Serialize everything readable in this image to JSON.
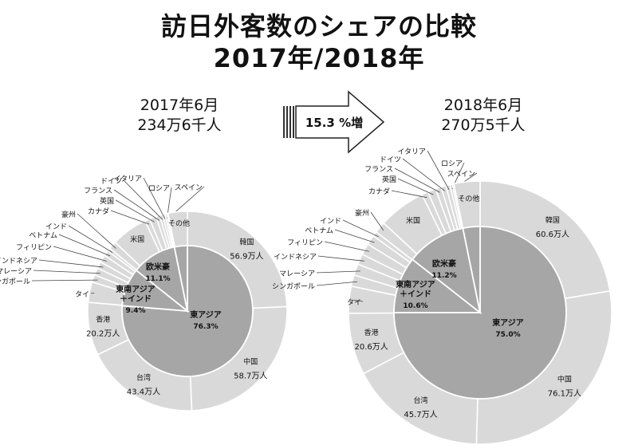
{
  "header": {
    "title_line1": "訪日外客数のシェアの比較",
    "title_line2": "2017年/2018年"
  },
  "left": {
    "month": "2017年6月",
    "total": "234万6千人"
  },
  "right": {
    "month": "2018年6月",
    "total": "270万5千人"
  },
  "arrow": {
    "label": "15.3 %増"
  },
  "chart_data": [
    {
      "type": "pie",
      "year": "2017年6月",
      "inner": [
        {
          "label": "東アジア",
          "share": "76.3%",
          "value": 76.3
        },
        {
          "label": "東南アジア\n＋インド",
          "share": "9.4%",
          "value": 9.4
        },
        {
          "label": "欧米豪",
          "share": "11.1%",
          "value": 11.1
        },
        {
          "label": "",
          "share": "",
          "value": 3.2
        }
      ],
      "outer": [
        {
          "label": "韓国",
          "amount": "56.9万人",
          "value": 24.3
        },
        {
          "label": "中国",
          "amount": "58.7万人",
          "value": 25.0
        },
        {
          "label": "台湾",
          "amount": "43.4万人",
          "value": 18.5
        },
        {
          "label": "香港",
          "amount": "20.2万人",
          "value": 8.6
        },
        {
          "label": "タイ",
          "amount": "",
          "value": 3.3
        },
        {
          "label": "シンガポール",
          "amount": "",
          "value": 1.2
        },
        {
          "label": "マレーシア",
          "amount": "",
          "value": 1.2
        },
        {
          "label": "インドネシア",
          "amount": "",
          "value": 1.1
        },
        {
          "label": "フィリピン",
          "amount": "",
          "value": 1.2
        },
        {
          "label": "ベトナム",
          "amount": "",
          "value": 0.9
        },
        {
          "label": "インド",
          "amount": "",
          "value": 0.5
        },
        {
          "label": "豪州",
          "amount": "",
          "value": 1.3
        },
        {
          "label": "米国",
          "amount": "",
          "value": 5.9
        },
        {
          "label": "カナダ",
          "amount": "",
          "value": 0.8
        },
        {
          "label": "英国",
          "amount": "",
          "value": 1.1
        },
        {
          "label": "フランス",
          "amount": "",
          "value": 0.6
        },
        {
          "label": "ドイツ",
          "amount": "",
          "value": 0.5
        },
        {
          "label": "イタリア",
          "amount": "",
          "value": 0.4
        },
        {
          "label": "ロシア",
          "amount": "",
          "value": 0.3
        },
        {
          "label": "スペイン",
          "amount": "",
          "value": 0.2
        },
        {
          "label": "その他",
          "amount": "",
          "value": 3.1
        }
      ]
    },
    {
      "type": "pie",
      "year": "2018年6月",
      "inner": [
        {
          "label": "東アジア",
          "share": "75.0%",
          "value": 75.0
        },
        {
          "label": "東南アジア\n＋インド",
          "share": "10.6%",
          "value": 10.6
        },
        {
          "label": "欧米豪",
          "share": "11.2%",
          "value": 11.2
        },
        {
          "label": "",
          "share": "",
          "value": 3.2
        }
      ],
      "outer": [
        {
          "label": "韓国",
          "amount": "60.6万人",
          "value": 22.4
        },
        {
          "label": "中国",
          "amount": "76.1万人",
          "value": 28.1
        },
        {
          "label": "台湾",
          "amount": "45.7万人",
          "value": 16.9
        },
        {
          "label": "香港",
          "amount": "20.6万人",
          "value": 7.6
        },
        {
          "label": "タイ",
          "amount": "",
          "value": 3.3
        },
        {
          "label": "シンガポール",
          "amount": "",
          "value": 1.4
        },
        {
          "label": "マレーシア",
          "amount": "",
          "value": 1.4
        },
        {
          "label": "インドネシア",
          "amount": "",
          "value": 1.3
        },
        {
          "label": "フィリピン",
          "amount": "",
          "value": 1.4
        },
        {
          "label": "ベトナム",
          "amount": "",
          "value": 1.2
        },
        {
          "label": "インド",
          "amount": "",
          "value": 0.6
        },
        {
          "label": "豪州",
          "amount": "",
          "value": 1.4
        },
        {
          "label": "米国",
          "amount": "",
          "value": 5.8
        },
        {
          "label": "カナダ",
          "amount": "",
          "value": 0.8
        },
        {
          "label": "英国",
          "amount": "",
          "value": 1.0
        },
        {
          "label": "フランス",
          "amount": "",
          "value": 0.7
        },
        {
          "label": "ドイツ",
          "amount": "",
          "value": 0.6
        },
        {
          "label": "イタリア",
          "amount": "",
          "value": 0.5
        },
        {
          "label": "ロシア",
          "amount": "",
          "value": 0.3
        },
        {
          "label": "スペイン",
          "amount": "",
          "value": 0.2
        },
        {
          "label": "その他",
          "amount": "",
          "value": 3.2
        }
      ]
    }
  ],
  "colors": {
    "outer": "#d9d9d9",
    "inner": "#a6a6a6",
    "stroke": "#ffffff",
    "leader": "#444444"
  }
}
